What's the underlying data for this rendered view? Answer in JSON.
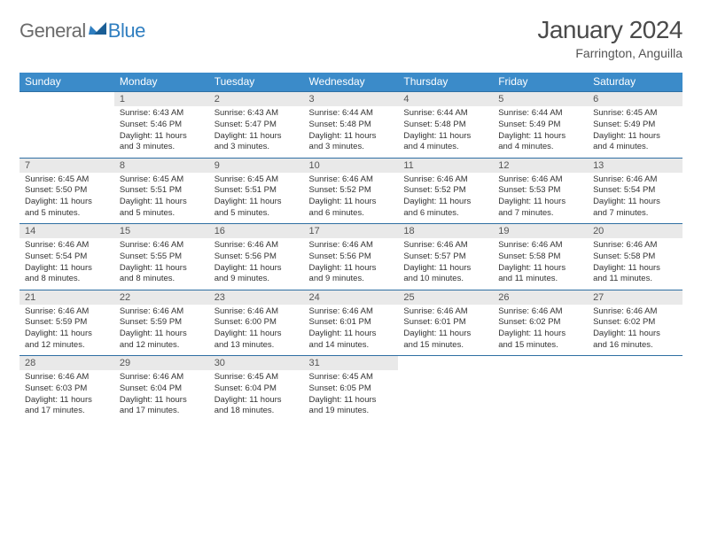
{
  "brand": {
    "word1": "General",
    "word2": "Blue"
  },
  "title": "January 2024",
  "location": "Farrington, Anguilla",
  "colors": {
    "header_bg": "#3b8bc9",
    "header_text": "#ffffff",
    "daynum_bg": "#e9e9e9",
    "rule": "#2f6fa3",
    "text": "#333333",
    "muted": "#6b6b6b",
    "brand_blue": "#2f7ec0"
  },
  "font_sizes": {
    "title": 28,
    "subtitle": 14,
    "dow": 12,
    "daynum": 11,
    "cell": 9.5,
    "logo": 22
  },
  "days_of_week": [
    "Sunday",
    "Monday",
    "Tuesday",
    "Wednesday",
    "Thursday",
    "Friday",
    "Saturday"
  ],
  "weeks": [
    [
      {
        "n": "",
        "sunrise": "",
        "sunset": "",
        "daylight1": "",
        "daylight2": ""
      },
      {
        "n": "1",
        "sunrise": "Sunrise: 6:43 AM",
        "sunset": "Sunset: 5:46 PM",
        "daylight1": "Daylight: 11 hours",
        "daylight2": "and 3 minutes."
      },
      {
        "n": "2",
        "sunrise": "Sunrise: 6:43 AM",
        "sunset": "Sunset: 5:47 PM",
        "daylight1": "Daylight: 11 hours",
        "daylight2": "and 3 minutes."
      },
      {
        "n": "3",
        "sunrise": "Sunrise: 6:44 AM",
        "sunset": "Sunset: 5:48 PM",
        "daylight1": "Daylight: 11 hours",
        "daylight2": "and 3 minutes."
      },
      {
        "n": "4",
        "sunrise": "Sunrise: 6:44 AM",
        "sunset": "Sunset: 5:48 PM",
        "daylight1": "Daylight: 11 hours",
        "daylight2": "and 4 minutes."
      },
      {
        "n": "5",
        "sunrise": "Sunrise: 6:44 AM",
        "sunset": "Sunset: 5:49 PM",
        "daylight1": "Daylight: 11 hours",
        "daylight2": "and 4 minutes."
      },
      {
        "n": "6",
        "sunrise": "Sunrise: 6:45 AM",
        "sunset": "Sunset: 5:49 PM",
        "daylight1": "Daylight: 11 hours",
        "daylight2": "and 4 minutes."
      }
    ],
    [
      {
        "n": "7",
        "sunrise": "Sunrise: 6:45 AM",
        "sunset": "Sunset: 5:50 PM",
        "daylight1": "Daylight: 11 hours",
        "daylight2": "and 5 minutes."
      },
      {
        "n": "8",
        "sunrise": "Sunrise: 6:45 AM",
        "sunset": "Sunset: 5:51 PM",
        "daylight1": "Daylight: 11 hours",
        "daylight2": "and 5 minutes."
      },
      {
        "n": "9",
        "sunrise": "Sunrise: 6:45 AM",
        "sunset": "Sunset: 5:51 PM",
        "daylight1": "Daylight: 11 hours",
        "daylight2": "and 5 minutes."
      },
      {
        "n": "10",
        "sunrise": "Sunrise: 6:46 AM",
        "sunset": "Sunset: 5:52 PM",
        "daylight1": "Daylight: 11 hours",
        "daylight2": "and 6 minutes."
      },
      {
        "n": "11",
        "sunrise": "Sunrise: 6:46 AM",
        "sunset": "Sunset: 5:52 PM",
        "daylight1": "Daylight: 11 hours",
        "daylight2": "and 6 minutes."
      },
      {
        "n": "12",
        "sunrise": "Sunrise: 6:46 AM",
        "sunset": "Sunset: 5:53 PM",
        "daylight1": "Daylight: 11 hours",
        "daylight2": "and 7 minutes."
      },
      {
        "n": "13",
        "sunrise": "Sunrise: 6:46 AM",
        "sunset": "Sunset: 5:54 PM",
        "daylight1": "Daylight: 11 hours",
        "daylight2": "and 7 minutes."
      }
    ],
    [
      {
        "n": "14",
        "sunrise": "Sunrise: 6:46 AM",
        "sunset": "Sunset: 5:54 PM",
        "daylight1": "Daylight: 11 hours",
        "daylight2": "and 8 minutes."
      },
      {
        "n": "15",
        "sunrise": "Sunrise: 6:46 AM",
        "sunset": "Sunset: 5:55 PM",
        "daylight1": "Daylight: 11 hours",
        "daylight2": "and 8 minutes."
      },
      {
        "n": "16",
        "sunrise": "Sunrise: 6:46 AM",
        "sunset": "Sunset: 5:56 PM",
        "daylight1": "Daylight: 11 hours",
        "daylight2": "and 9 minutes."
      },
      {
        "n": "17",
        "sunrise": "Sunrise: 6:46 AM",
        "sunset": "Sunset: 5:56 PM",
        "daylight1": "Daylight: 11 hours",
        "daylight2": "and 9 minutes."
      },
      {
        "n": "18",
        "sunrise": "Sunrise: 6:46 AM",
        "sunset": "Sunset: 5:57 PM",
        "daylight1": "Daylight: 11 hours",
        "daylight2": "and 10 minutes."
      },
      {
        "n": "19",
        "sunrise": "Sunrise: 6:46 AM",
        "sunset": "Sunset: 5:58 PM",
        "daylight1": "Daylight: 11 hours",
        "daylight2": "and 11 minutes."
      },
      {
        "n": "20",
        "sunrise": "Sunrise: 6:46 AM",
        "sunset": "Sunset: 5:58 PM",
        "daylight1": "Daylight: 11 hours",
        "daylight2": "and 11 minutes."
      }
    ],
    [
      {
        "n": "21",
        "sunrise": "Sunrise: 6:46 AM",
        "sunset": "Sunset: 5:59 PM",
        "daylight1": "Daylight: 11 hours",
        "daylight2": "and 12 minutes."
      },
      {
        "n": "22",
        "sunrise": "Sunrise: 6:46 AM",
        "sunset": "Sunset: 5:59 PM",
        "daylight1": "Daylight: 11 hours",
        "daylight2": "and 12 minutes."
      },
      {
        "n": "23",
        "sunrise": "Sunrise: 6:46 AM",
        "sunset": "Sunset: 6:00 PM",
        "daylight1": "Daylight: 11 hours",
        "daylight2": "and 13 minutes."
      },
      {
        "n": "24",
        "sunrise": "Sunrise: 6:46 AM",
        "sunset": "Sunset: 6:01 PM",
        "daylight1": "Daylight: 11 hours",
        "daylight2": "and 14 minutes."
      },
      {
        "n": "25",
        "sunrise": "Sunrise: 6:46 AM",
        "sunset": "Sunset: 6:01 PM",
        "daylight1": "Daylight: 11 hours",
        "daylight2": "and 15 minutes."
      },
      {
        "n": "26",
        "sunrise": "Sunrise: 6:46 AM",
        "sunset": "Sunset: 6:02 PM",
        "daylight1": "Daylight: 11 hours",
        "daylight2": "and 15 minutes."
      },
      {
        "n": "27",
        "sunrise": "Sunrise: 6:46 AM",
        "sunset": "Sunset: 6:02 PM",
        "daylight1": "Daylight: 11 hours",
        "daylight2": "and 16 minutes."
      }
    ],
    [
      {
        "n": "28",
        "sunrise": "Sunrise: 6:46 AM",
        "sunset": "Sunset: 6:03 PM",
        "daylight1": "Daylight: 11 hours",
        "daylight2": "and 17 minutes."
      },
      {
        "n": "29",
        "sunrise": "Sunrise: 6:46 AM",
        "sunset": "Sunset: 6:04 PM",
        "daylight1": "Daylight: 11 hours",
        "daylight2": "and 17 minutes."
      },
      {
        "n": "30",
        "sunrise": "Sunrise: 6:45 AM",
        "sunset": "Sunset: 6:04 PM",
        "daylight1": "Daylight: 11 hours",
        "daylight2": "and 18 minutes."
      },
      {
        "n": "31",
        "sunrise": "Sunrise: 6:45 AM",
        "sunset": "Sunset: 6:05 PM",
        "daylight1": "Daylight: 11 hours",
        "daylight2": "and 19 minutes."
      },
      {
        "n": "",
        "sunrise": "",
        "sunset": "",
        "daylight1": "",
        "daylight2": ""
      },
      {
        "n": "",
        "sunrise": "",
        "sunset": "",
        "daylight1": "",
        "daylight2": ""
      },
      {
        "n": "",
        "sunrise": "",
        "sunset": "",
        "daylight1": "",
        "daylight2": ""
      }
    ]
  ]
}
